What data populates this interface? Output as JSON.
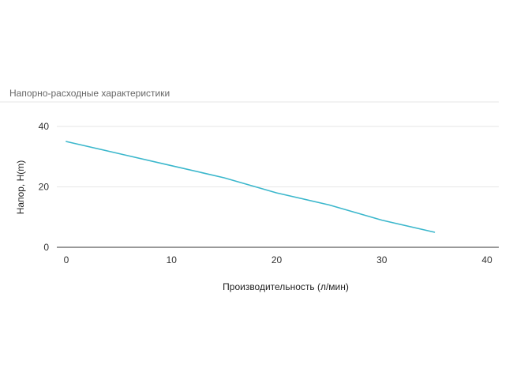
{
  "chart_data": {
    "type": "line",
    "title": "Напорно-расходные характеристики",
    "xlabel": "Производительность (л/мин)",
    "ylabel": "Напор, H(m)",
    "xlim": [
      0,
      40
    ],
    "ylim": [
      0,
      40
    ],
    "x_ticks": [
      "0",
      "10",
      "20",
      "30",
      "40"
    ],
    "y_ticks": [
      "0",
      "20",
      "40"
    ],
    "grid": true,
    "series": [
      {
        "color": "#3bb7cc",
        "x": [
          0,
          5,
          10,
          15,
          20,
          25,
          30,
          35
        ],
        "y": [
          35,
          31,
          27,
          23,
          18,
          14,
          9,
          5
        ]
      }
    ]
  }
}
